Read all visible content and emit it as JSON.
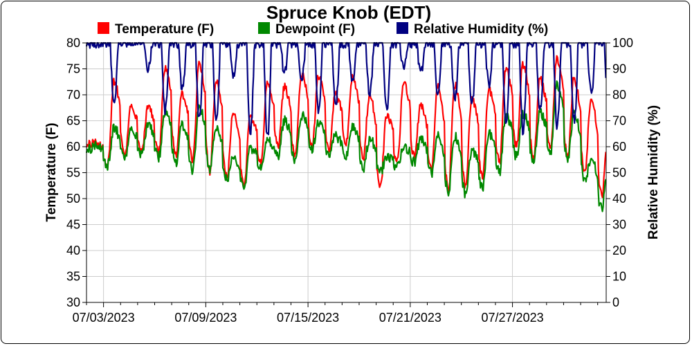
{
  "chart_data": {
    "type": "line",
    "title": "Spruce Knob (EDT)",
    "ylabel": "Temperature (F)",
    "y2label": "Relative Humidity (%)",
    "ylim": [
      30,
      80
    ],
    "y2lim": [
      0,
      100
    ],
    "yticks": [
      30,
      35,
      40,
      45,
      50,
      55,
      60,
      65,
      70,
      75,
      80
    ],
    "y2ticks": [
      0,
      10,
      20,
      30,
      40,
      50,
      60,
      70,
      80,
      90,
      100
    ],
    "xlim_days": [
      0,
      30.5
    ],
    "xticks": [
      "07/03/2023",
      "07/09/2023",
      "07/15/2023",
      "07/21/2023",
      "07/27/2023"
    ],
    "grid": true,
    "legend_position": "top",
    "series": [
      {
        "name": "Temperature (F)",
        "axis": "left",
        "color": "#ff0000",
        "daily_min": [
          60.5,
          56.5,
          58,
          59,
          59,
          58.5,
          57.5,
          55,
          54,
          52.5,
          57,
          60,
          58.5,
          60,
          59,
          61,
          58,
          52,
          57,
          58,
          55.5,
          52,
          52.5,
          54,
          57,
          60,
          58,
          60,
          58,
          55,
          50.5
        ],
        "daily_max": [
          61,
          72.5,
          67.5,
          67.5,
          75,
          70,
          76,
          73,
          66.5,
          65.5,
          72,
          71.5,
          74,
          73.5,
          70,
          73.5,
          70,
          66,
          72.5,
          68,
          71.5,
          72,
          69.5,
          71,
          75,
          76,
          73,
          77,
          73,
          69,
          63
        ]
      },
      {
        "name": "Dewpoint (F)",
        "axis": "left",
        "color": "#008800",
        "daily_min": [
          59.5,
          56.5,
          57.5,
          58.5,
          58,
          57,
          55.5,
          55.5,
          53.5,
          52,
          56,
          58,
          57.5,
          59.5,
          58,
          58.5,
          56,
          55,
          56,
          57,
          55,
          51.5,
          51,
          52,
          55,
          58,
          57.5,
          59,
          57.5,
          53.5,
          48
        ],
        "daily_max": [
          60.5,
          63.5,
          63,
          64,
          66.5,
          64,
          67.5,
          64,
          58,
          59.5,
          61,
          65,
          66,
          64.5,
          62,
          64,
          61.5,
          58,
          60,
          61.5,
          62,
          62,
          59.5,
          62.5,
          66,
          66.5,
          66.5,
          72,
          66.5,
          57.5,
          57
        ]
      },
      {
        "name": "Relative Humidity (%)",
        "axis": "right",
        "color": "#000080",
        "daily_min": [
          100,
          76,
          100,
          90,
          74,
          82,
          70,
          70,
          88,
          66,
          64,
          88,
          86,
          74,
          76,
          84,
          80,
          74,
          90,
          88,
          80,
          78,
          76,
          84,
          70,
          66,
          74,
          68,
          70,
          80,
          72
        ]
      }
    ]
  }
}
